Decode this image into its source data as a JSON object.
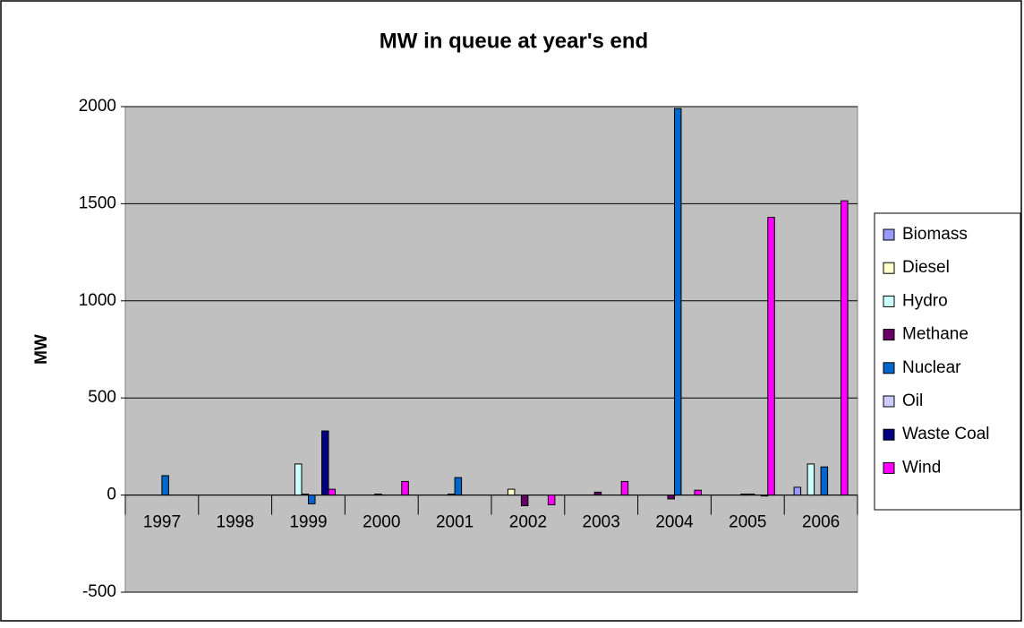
{
  "chart_data": {
    "type": "bar",
    "title": "MW in queue at year's end",
    "y_label": "MW",
    "categories": [
      "1997",
      "1998",
      "1999",
      "2000",
      "2001",
      "2002",
      "2003",
      "2004",
      "2005",
      "2006"
    ],
    "series": [
      {
        "name": "Biomass",
        "color": "#9999ff",
        "values": [
          0,
          0,
          0,
          0,
          0,
          0,
          0,
          0,
          0,
          40
        ]
      },
      {
        "name": "Diesel",
        "color": "#ffffcc",
        "values": [
          0,
          0,
          0,
          0,
          0,
          30,
          0,
          0,
          0,
          0
        ]
      },
      {
        "name": "Hydro",
        "color": "#ccffff",
        "values": [
          0,
          0,
          160,
          0,
          0,
          0,
          0,
          0,
          0,
          160
        ]
      },
      {
        "name": "Methane",
        "color": "#660066",
        "values": [
          0,
          0,
          5,
          5,
          5,
          -55,
          15,
          -20,
          5,
          0
        ]
      },
      {
        "name": "Nuclear",
        "color": "#0066cc",
        "values": [
          100,
          0,
          -45,
          0,
          90,
          0,
          0,
          1990,
          5,
          145
        ]
      },
      {
        "name": "Oil",
        "color": "#ccccff",
        "values": [
          0,
          0,
          0,
          0,
          0,
          0,
          0,
          0,
          0,
          0
        ]
      },
      {
        "name": "Waste Coal",
        "color": "#000080",
        "values": [
          0,
          0,
          330,
          0,
          0,
          0,
          0,
          0,
          -5,
          0
        ]
      },
      {
        "name": "Wind",
        "color": "#ff00ff",
        "values": [
          0,
          0,
          30,
          70,
          0,
          -50,
          70,
          25,
          1430,
          1515
        ]
      }
    ],
    "ylim": [
      -500,
      2000
    ],
    "yticks": [
      -500,
      0,
      500,
      1000,
      1500,
      2000
    ],
    "grid": true,
    "legend": "right"
  }
}
